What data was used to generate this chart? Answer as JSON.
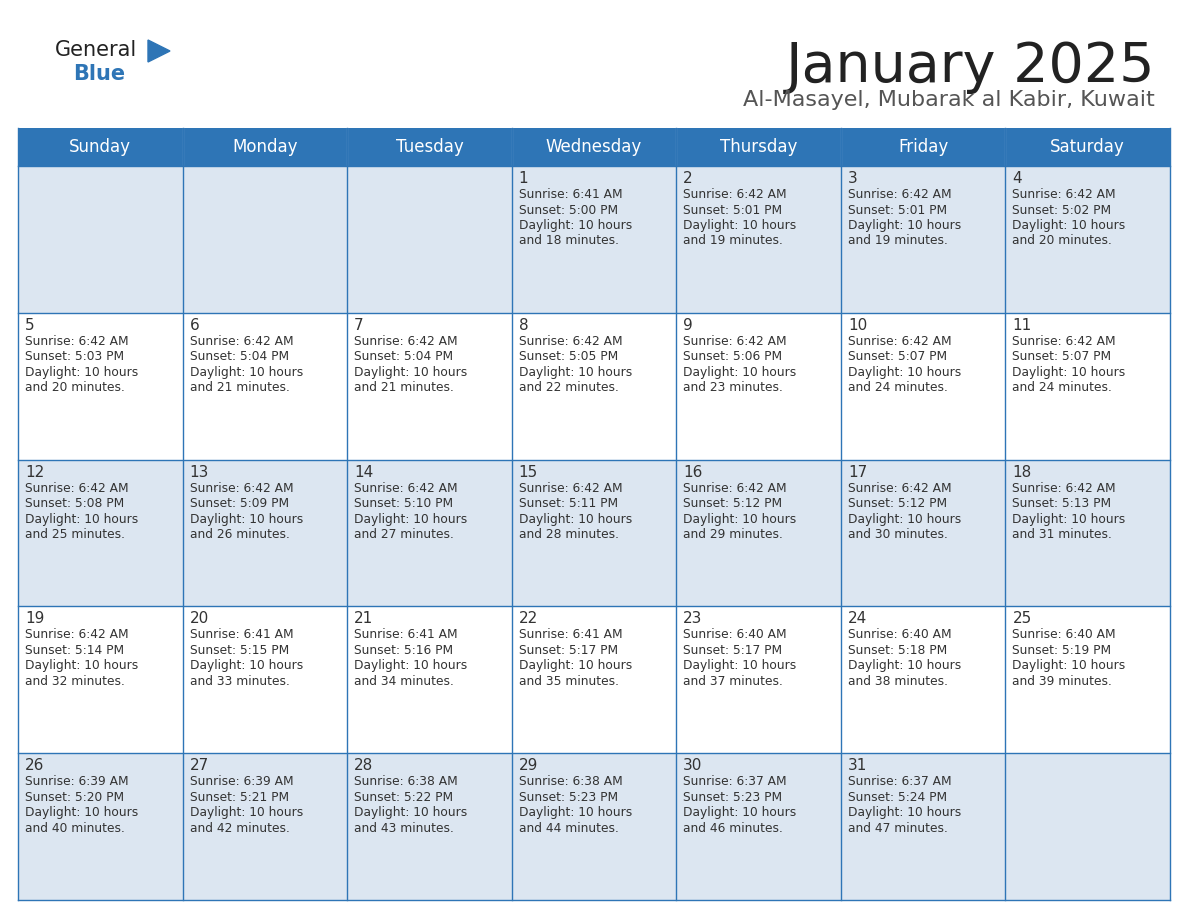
{
  "title": "January 2025",
  "subtitle": "Al-Masayel, Mubarak al Kabir, Kuwait",
  "days_of_week": [
    "Sunday",
    "Monday",
    "Tuesday",
    "Wednesday",
    "Thursday",
    "Friday",
    "Saturday"
  ],
  "header_bg": "#2e75b6",
  "header_text_color": "#ffffff",
  "row_bg_odd": "#dce6f1",
  "row_bg_even": "#ffffff",
  "cell_text_color": "#333333",
  "day_num_color": "#333333",
  "grid_line_color": "#2e75b6",
  "title_color": "#222222",
  "subtitle_color": "#555555",
  "general_text_color": "#222222",
  "blue_text_color": "#2e75b6",
  "logo_triangle_color": "#2e75b6",
  "weeks": [
    [
      {
        "day": 0,
        "sunrise": "",
        "sunset": "",
        "daylight": ""
      },
      {
        "day": 0,
        "sunrise": "",
        "sunset": "",
        "daylight": ""
      },
      {
        "day": 0,
        "sunrise": "",
        "sunset": "",
        "daylight": ""
      },
      {
        "day": 1,
        "sunrise": "6:41 AM",
        "sunset": "5:00 PM",
        "daylight": "10 hours\nand 18 minutes."
      },
      {
        "day": 2,
        "sunrise": "6:42 AM",
        "sunset": "5:01 PM",
        "daylight": "10 hours\nand 19 minutes."
      },
      {
        "day": 3,
        "sunrise": "6:42 AM",
        "sunset": "5:01 PM",
        "daylight": "10 hours\nand 19 minutes."
      },
      {
        "day": 4,
        "sunrise": "6:42 AM",
        "sunset": "5:02 PM",
        "daylight": "10 hours\nand 20 minutes."
      }
    ],
    [
      {
        "day": 5,
        "sunrise": "6:42 AM",
        "sunset": "5:03 PM",
        "daylight": "10 hours\nand 20 minutes."
      },
      {
        "day": 6,
        "sunrise": "6:42 AM",
        "sunset": "5:04 PM",
        "daylight": "10 hours\nand 21 minutes."
      },
      {
        "day": 7,
        "sunrise": "6:42 AM",
        "sunset": "5:04 PM",
        "daylight": "10 hours\nand 21 minutes."
      },
      {
        "day": 8,
        "sunrise": "6:42 AM",
        "sunset": "5:05 PM",
        "daylight": "10 hours\nand 22 minutes."
      },
      {
        "day": 9,
        "sunrise": "6:42 AM",
        "sunset": "5:06 PM",
        "daylight": "10 hours\nand 23 minutes."
      },
      {
        "day": 10,
        "sunrise": "6:42 AM",
        "sunset": "5:07 PM",
        "daylight": "10 hours\nand 24 minutes."
      },
      {
        "day": 11,
        "sunrise": "6:42 AM",
        "sunset": "5:07 PM",
        "daylight": "10 hours\nand 24 minutes."
      }
    ],
    [
      {
        "day": 12,
        "sunrise": "6:42 AM",
        "sunset": "5:08 PM",
        "daylight": "10 hours\nand 25 minutes."
      },
      {
        "day": 13,
        "sunrise": "6:42 AM",
        "sunset": "5:09 PM",
        "daylight": "10 hours\nand 26 minutes."
      },
      {
        "day": 14,
        "sunrise": "6:42 AM",
        "sunset": "5:10 PM",
        "daylight": "10 hours\nand 27 minutes."
      },
      {
        "day": 15,
        "sunrise": "6:42 AM",
        "sunset": "5:11 PM",
        "daylight": "10 hours\nand 28 minutes."
      },
      {
        "day": 16,
        "sunrise": "6:42 AM",
        "sunset": "5:12 PM",
        "daylight": "10 hours\nand 29 minutes."
      },
      {
        "day": 17,
        "sunrise": "6:42 AM",
        "sunset": "5:12 PM",
        "daylight": "10 hours\nand 30 minutes."
      },
      {
        "day": 18,
        "sunrise": "6:42 AM",
        "sunset": "5:13 PM",
        "daylight": "10 hours\nand 31 minutes."
      }
    ],
    [
      {
        "day": 19,
        "sunrise": "6:42 AM",
        "sunset": "5:14 PM",
        "daylight": "10 hours\nand 32 minutes."
      },
      {
        "day": 20,
        "sunrise": "6:41 AM",
        "sunset": "5:15 PM",
        "daylight": "10 hours\nand 33 minutes."
      },
      {
        "day": 21,
        "sunrise": "6:41 AM",
        "sunset": "5:16 PM",
        "daylight": "10 hours\nand 34 minutes."
      },
      {
        "day": 22,
        "sunrise": "6:41 AM",
        "sunset": "5:17 PM",
        "daylight": "10 hours\nand 35 minutes."
      },
      {
        "day": 23,
        "sunrise": "6:40 AM",
        "sunset": "5:17 PM",
        "daylight": "10 hours\nand 37 minutes."
      },
      {
        "day": 24,
        "sunrise": "6:40 AM",
        "sunset": "5:18 PM",
        "daylight": "10 hours\nand 38 minutes."
      },
      {
        "day": 25,
        "sunrise": "6:40 AM",
        "sunset": "5:19 PM",
        "daylight": "10 hours\nand 39 minutes."
      }
    ],
    [
      {
        "day": 26,
        "sunrise": "6:39 AM",
        "sunset": "5:20 PM",
        "daylight": "10 hours\nand 40 minutes."
      },
      {
        "day": 27,
        "sunrise": "6:39 AM",
        "sunset": "5:21 PM",
        "daylight": "10 hours\nand 42 minutes."
      },
      {
        "day": 28,
        "sunrise": "6:38 AM",
        "sunset": "5:22 PM",
        "daylight": "10 hours\nand 43 minutes."
      },
      {
        "day": 29,
        "sunrise": "6:38 AM",
        "sunset": "5:23 PM",
        "daylight": "10 hours\nand 44 minutes."
      },
      {
        "day": 30,
        "sunrise": "6:37 AM",
        "sunset": "5:23 PM",
        "daylight": "10 hours\nand 46 minutes."
      },
      {
        "day": 31,
        "sunrise": "6:37 AM",
        "sunset": "5:24 PM",
        "daylight": "10 hours\nand 47 minutes."
      },
      {
        "day": 0,
        "sunrise": "",
        "sunset": "",
        "daylight": ""
      }
    ]
  ]
}
